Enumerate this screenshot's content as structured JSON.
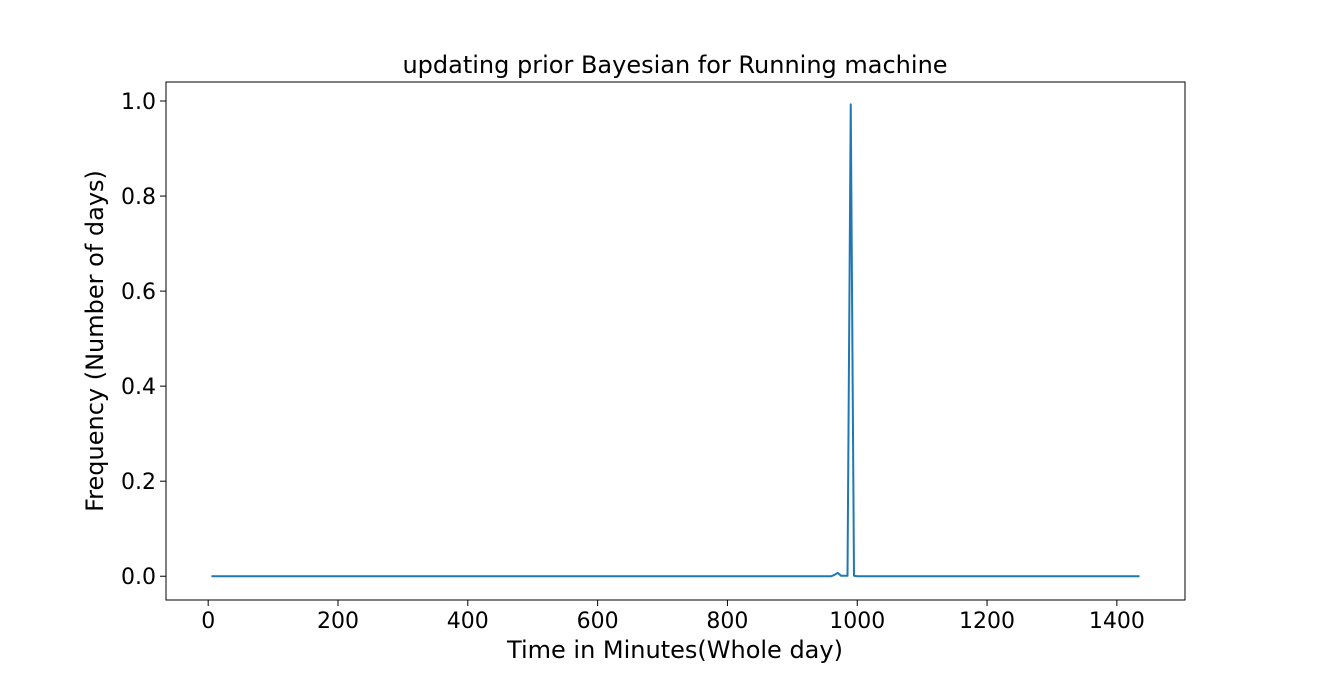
{
  "chart_data": {
    "type": "line",
    "title": "updating prior Bayesian for Running machine",
    "xlabel": "Time in Minutes(Whole day)",
    "ylabel": "Frequency (Number of days)",
    "xlim": [
      -65,
      1505
    ],
    "ylim": [
      -0.05,
      1.04
    ],
    "xticks": [
      0,
      200,
      400,
      600,
      800,
      1000,
      1200,
      1400
    ],
    "xtick_labels": [
      "0",
      "200",
      "400",
      "600",
      "800",
      "1000",
      "1200",
      "1400"
    ],
    "yticks": [
      0.0,
      0.2,
      0.4,
      0.6,
      0.8,
      1.0
    ],
    "ytick_labels": [
      "0.0",
      "0.2",
      "0.4",
      "0.6",
      "0.8",
      "1.0"
    ],
    "grid": false,
    "series": [
      {
        "color": "#1f77b4",
        "x": [
          5,
          960,
          965,
          970,
          975,
          985,
          990,
          995,
          1000,
          1435
        ],
        "y": [
          0,
          0,
          0.003,
          0.007,
          0.001,
          0.001,
          0.993,
          0.001,
          0,
          0
        ]
      }
    ]
  }
}
